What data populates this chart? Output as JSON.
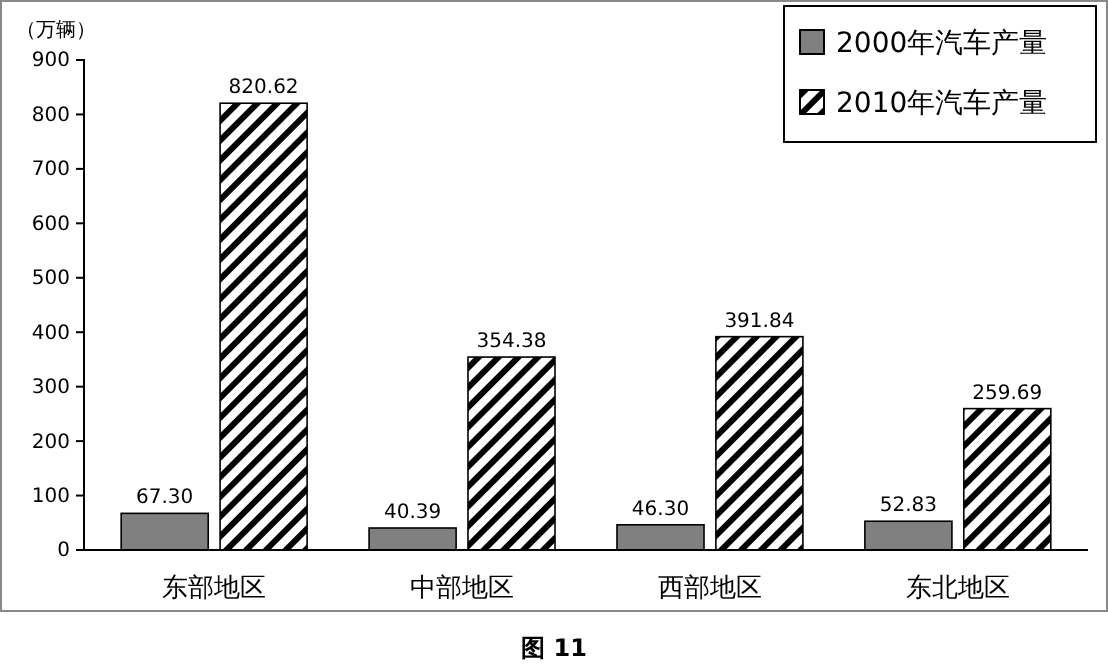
{
  "chart_data": {
    "type": "bar",
    "ylabel": "（万辆）",
    "categories": [
      "东部地区",
      "中部地区",
      "西部地区",
      "东北地区"
    ],
    "series": [
      {
        "name": "2000年汽车产量",
        "color": "#808080",
        "values": [
          67.3,
          40.39,
          46.3,
          52.83
        ],
        "value_labels": [
          "67.30",
          "40.39",
          "46.30",
          "52.83"
        ]
      },
      {
        "name": "2010年汽车产量",
        "color": "#000000",
        "values": [
          820.62,
          354.38,
          391.84,
          259.69
        ],
        "value_labels": [
          "820.62",
          "354.38",
          "391.84",
          "259.69"
        ]
      }
    ],
    "ylim": [
      0,
      900
    ],
    "yticks": [
      0,
      100,
      200,
      300,
      400,
      500,
      600,
      700,
      800,
      900
    ],
    "grid": false,
    "legend": "top right",
    "annotations": [
      "图 11"
    ]
  }
}
